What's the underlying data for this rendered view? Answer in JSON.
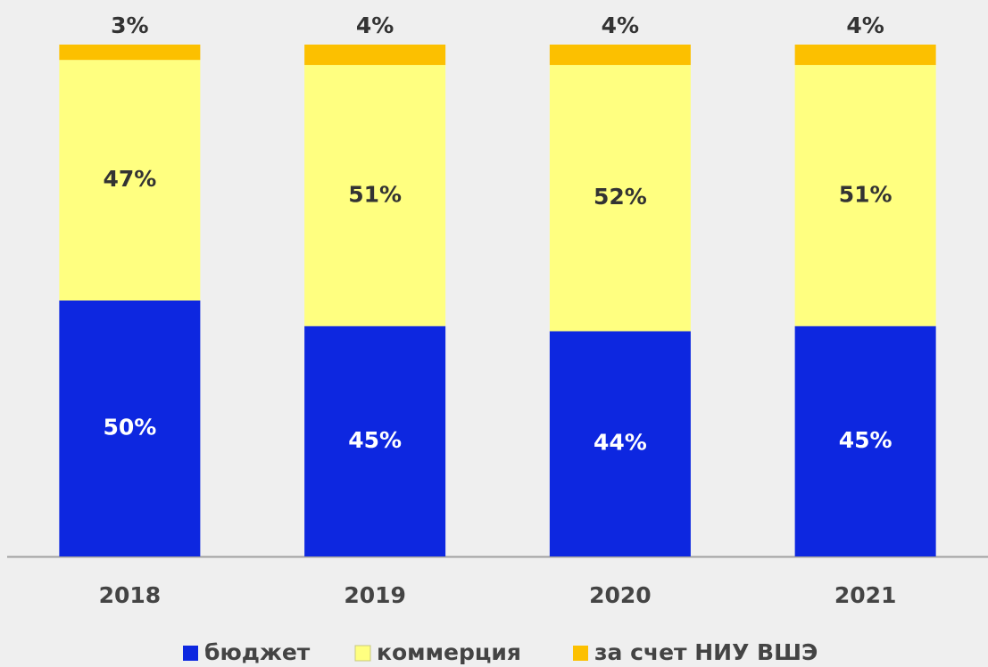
{
  "chart_data": {
    "type": "stacked_bar",
    "categories": [
      "2018",
      "2019",
      "2020",
      "2021"
    ],
    "series": [
      {
        "name": "бюджет",
        "color": "#0d27e0",
        "values": [
          50,
          45,
          44,
          45
        ],
        "value_labels": [
          "50%",
          "45%",
          "44%",
          "45%"
        ]
      },
      {
        "name": "коммерция",
        "color": "#ffff80",
        "values": [
          47,
          51,
          52,
          51
        ],
        "value_labels": [
          "47%",
          "51%",
          "52%",
          "51%"
        ]
      },
      {
        "name": "за счет НИУ ВШЭ",
        "color": "#fcc000",
        "values": [
          3,
          4,
          4,
          4
        ],
        "value_labels": [
          "3%",
          "4%",
          "4%",
          "4%"
        ]
      }
    ],
    "legend": "bottom"
  }
}
